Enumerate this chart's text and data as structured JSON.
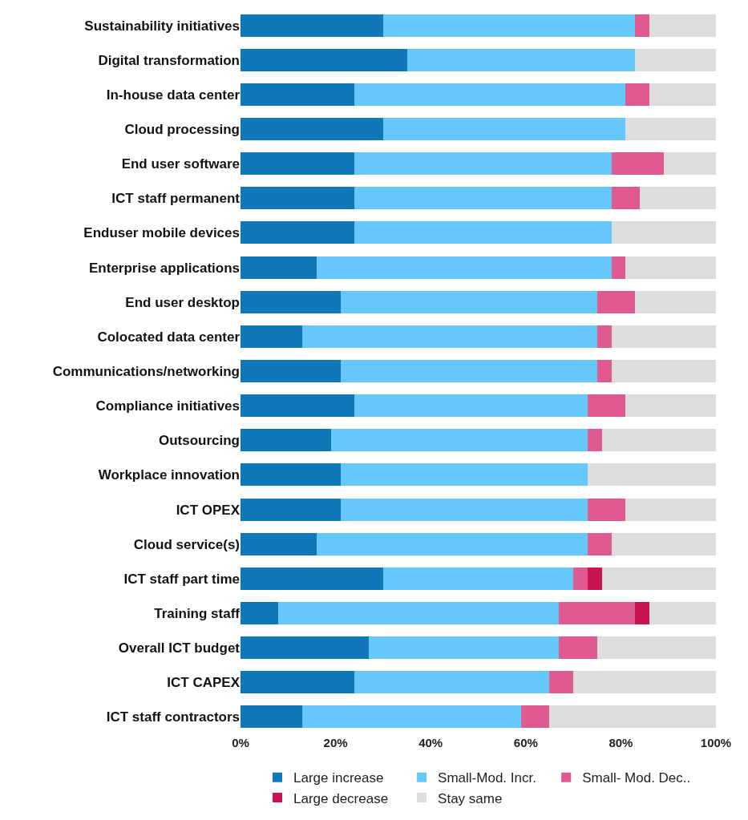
{
  "chart_data": {
    "type": "bar",
    "orientation": "horizontal",
    "stacked": true,
    "categories": [
      "Sustainability initiatives",
      "Digital transformation",
      "In-house data center",
      "Cloud processing",
      "End user software",
      "ICT staff permanent",
      "Enduser mobile devices",
      "Enterprise applications",
      "End user desktop",
      "Colocated data center",
      "Communications/networking",
      "Compliance initiatives",
      "Outsourcing",
      "Workplace innovation",
      "ICT OPEX",
      "Cloud service(s)",
      "ICT staff part time",
      "Training staff",
      "Overall ICT budget",
      "ICT CAPEX",
      "ICT staff contractors"
    ],
    "series": [
      {
        "name": "Large increase",
        "color": "#1077b8",
        "values": [
          30,
          35,
          24,
          30,
          24,
          24,
          24,
          16,
          21,
          13,
          21,
          24,
          19,
          21,
          21,
          16,
          30,
          8,
          27,
          24,
          13
        ]
      },
      {
        "name": "Small-Mod. Incr.",
        "color": "#66c8fa",
        "values": [
          53,
          48,
          57,
          51,
          54,
          54,
          54,
          62,
          54,
          62,
          54,
          49,
          54,
          52,
          52,
          57,
          40,
          59,
          40,
          41,
          46
        ]
      },
      {
        "name": "Small- Mod. Dec..",
        "color": "#e05a92",
        "values": [
          3,
          0,
          5,
          0,
          11,
          6,
          0,
          3,
          8,
          3,
          3,
          8,
          3,
          0,
          8,
          5,
          3,
          16,
          8,
          5,
          6
        ]
      },
      {
        "name": "Large decrease",
        "color": "#c8154f",
        "values": [
          0,
          0,
          0,
          0,
          0,
          0,
          0,
          0,
          0,
          0,
          0,
          0,
          0,
          0,
          0,
          0,
          3,
          3,
          0,
          0,
          0
        ]
      },
      {
        "name": "Stay same",
        "color": "#dddddd",
        "values": [
          14,
          17,
          14,
          19,
          11,
          16,
          22,
          19,
          17,
          22,
          22,
          19,
          24,
          27,
          19,
          22,
          24,
          14,
          25,
          30,
          35
        ]
      }
    ],
    "xlim": [
      0,
      100
    ],
    "xticks": [
      {
        "value": 0,
        "label": "0%"
      },
      {
        "value": 20,
        "label": "20%"
      },
      {
        "value": 40,
        "label": "40%"
      },
      {
        "value": 60,
        "label": "60%"
      },
      {
        "value": 80,
        "label": "80%"
      },
      {
        "value": 100,
        "label": "100%"
      }
    ],
    "grid": false,
    "legend": "bottom"
  }
}
